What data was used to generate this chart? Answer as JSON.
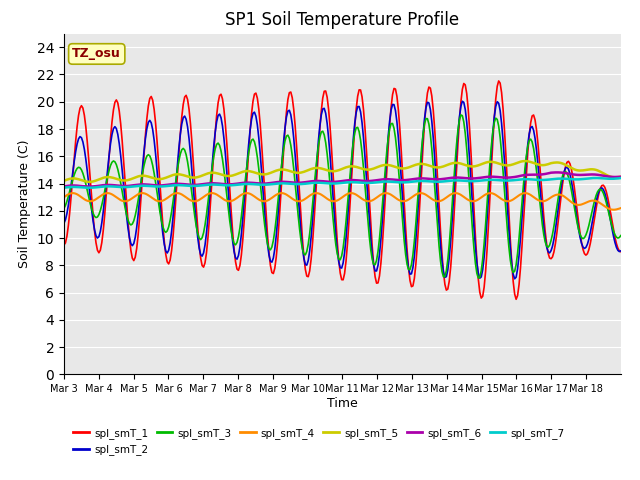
{
  "title": "SP1 Soil Temperature Profile",
  "xlabel": "Time",
  "ylabel": "Soil Temperature (C)",
  "annotation": "TZ_osu",
  "annotation_color": "#8B0000",
  "annotation_bg": "#FFFFC0",
  "annotation_edge": "#AAAA00",
  "ylim": [
    0,
    25
  ],
  "yticks": [
    0,
    2,
    4,
    6,
    8,
    10,
    12,
    14,
    16,
    18,
    20,
    22,
    24
  ],
  "background_color": "#E8E8E8",
  "plot_bg": "#E8E8E8",
  "series_colors": {
    "spl_smT_1": "#FF0000",
    "spl_smT_2": "#0000CC",
    "spl_smT_3": "#00BB00",
    "spl_smT_4": "#FF8C00",
    "spl_smT_5": "#CCCC00",
    "spl_smT_6": "#AA00AA",
    "spl_smT_7": "#00CCCC"
  },
  "x_tick_labels": [
    "Mar 3",
    "Mar 4",
    "Mar 5",
    "Mar 6",
    "Mar 7",
    "Mar 8",
    "Mar 9",
    "Mar 10",
    "Mar 11",
    "Mar 12",
    "Mar 13",
    "Mar 14",
    "Mar 15",
    "Mar 16",
    "Mar 17",
    "Mar 18"
  ]
}
